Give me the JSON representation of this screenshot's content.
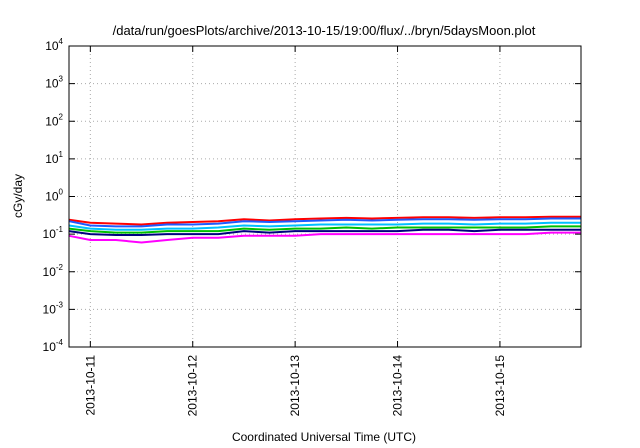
{
  "chart_data": {
    "type": "line",
    "title": "/data/run/goesPlots/archive/2013-10-15/19:00/flux/../bryn/5daysMoon.plot",
    "xlabel": "Coordinated Universal Time (UTC)",
    "ylabel": "cGy/day",
    "y_scale": "log",
    "ylim": [
      0.0001,
      10000
    ],
    "y_ticks": [
      {
        "base": "10",
        "exp": "-4",
        "value": 0.0001
      },
      {
        "base": "10",
        "exp": "-3",
        "value": 0.001
      },
      {
        "base": "10",
        "exp": "-2",
        "value": 0.01
      },
      {
        "base": "10",
        "exp": "-1",
        "value": 0.1
      },
      {
        "base": "10",
        "exp": "0",
        "value": 1
      },
      {
        "base": "10",
        "exp": "1",
        "value": 10
      },
      {
        "base": "10",
        "exp": "2",
        "value": 100
      },
      {
        "base": "10",
        "exp": "3",
        "value": 1000
      },
      {
        "base": "10",
        "exp": "4",
        "value": 10000
      }
    ],
    "xlim": [
      "2013-10-10 19:00",
      "2013-10-15 19:00"
    ],
    "x_ticks": [
      "2013-10-11",
      "2013-10-12",
      "2013-10-13",
      "2013-10-14",
      "2013-10-15"
    ],
    "grid": true,
    "x": [
      "2013-10-10 19:00",
      "2013-10-11 00:00",
      "2013-10-11 06:00",
      "2013-10-11 12:00",
      "2013-10-11 18:00",
      "2013-10-12 00:00",
      "2013-10-12 06:00",
      "2013-10-12 12:00",
      "2013-10-12 18:00",
      "2013-10-13 00:00",
      "2013-10-13 06:00",
      "2013-10-13 12:00",
      "2013-10-13 18:00",
      "2013-10-14 00:00",
      "2013-10-14 06:00",
      "2013-10-14 12:00",
      "2013-10-14 18:00",
      "2013-10-15 00:00",
      "2013-10-15 06:00",
      "2013-10-15 12:00",
      "2013-10-15 19:00"
    ],
    "series": [
      {
        "color": "#ff0000",
        "values": [
          0.24,
          0.2,
          0.19,
          0.18,
          0.2,
          0.21,
          0.22,
          0.25,
          0.23,
          0.25,
          0.26,
          0.27,
          0.26,
          0.27,
          0.28,
          0.28,
          0.27,
          0.28,
          0.28,
          0.29,
          0.29
        ]
      },
      {
        "color": "#1e5aff",
        "values": [
          0.22,
          0.17,
          0.16,
          0.16,
          0.18,
          0.18,
          0.19,
          0.22,
          0.21,
          0.22,
          0.23,
          0.24,
          0.23,
          0.24,
          0.25,
          0.25,
          0.24,
          0.25,
          0.25,
          0.26,
          0.26
        ]
      },
      {
        "color": "#00c0ff",
        "values": [
          0.17,
          0.14,
          0.13,
          0.13,
          0.14,
          0.14,
          0.15,
          0.17,
          0.16,
          0.17,
          0.18,
          0.18,
          0.18,
          0.18,
          0.19,
          0.19,
          0.18,
          0.19,
          0.19,
          0.2,
          0.2
        ]
      },
      {
        "color": "#00c000",
        "values": [
          0.14,
          0.12,
          0.11,
          0.11,
          0.12,
          0.12,
          0.12,
          0.14,
          0.13,
          0.14,
          0.14,
          0.15,
          0.14,
          0.15,
          0.15,
          0.15,
          0.15,
          0.15,
          0.15,
          0.16,
          0.16
        ]
      },
      {
        "color": "#000080",
        "values": [
          0.12,
          0.1,
          0.095,
          0.095,
          0.1,
          0.1,
          0.1,
          0.12,
          0.11,
          0.12,
          0.12,
          0.12,
          0.12,
          0.12,
          0.13,
          0.13,
          0.12,
          0.13,
          0.13,
          0.13,
          0.13
        ]
      },
      {
        "color": "#ff00ff",
        "values": [
          0.09,
          0.07,
          0.07,
          0.06,
          0.07,
          0.08,
          0.08,
          0.09,
          0.09,
          0.09,
          0.1,
          0.1,
          0.1,
          0.1,
          0.1,
          0.1,
          0.1,
          0.1,
          0.1,
          0.11,
          0.11
        ]
      }
    ]
  }
}
